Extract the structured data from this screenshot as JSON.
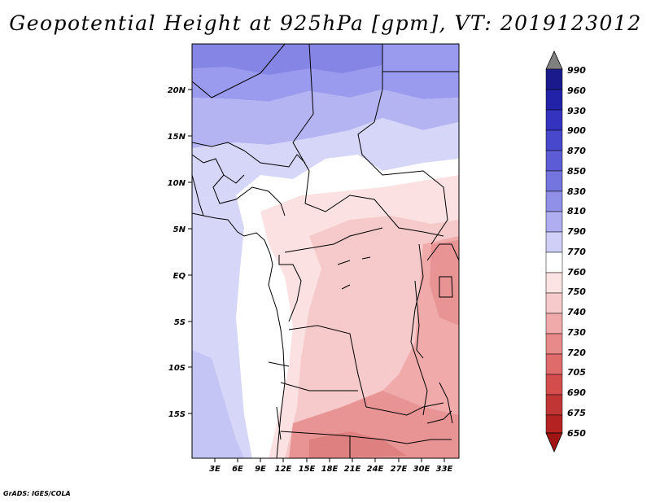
{
  "title": "Geopotential Height at 925hPa [gpm], VT: 2019123012",
  "credit": "GrADS: IGES/COLA",
  "map": {
    "lat_labels": [
      "20N",
      "15N",
      "10N",
      "5N",
      "EQ",
      "5S",
      "10S",
      "15S"
    ],
    "lon_labels": [
      "3E",
      "6E",
      "9E",
      "12E",
      "15E",
      "18E",
      "21E",
      "24E",
      "27E",
      "30E",
      "33E"
    ]
  },
  "colorbar": {
    "levels": [
      "990",
      "960",
      "930",
      "900",
      "870",
      "850",
      "830",
      "810",
      "790",
      "770",
      "760",
      "750",
      "740",
      "730",
      "720",
      "705",
      "690",
      "675",
      "650"
    ],
    "colors": [
      "#808080",
      "#1a1a8c",
      "#2222a8",
      "#3333bf",
      "#4848cc",
      "#5c5cd6",
      "#7575e0",
      "#9090e8",
      "#aeaef0",
      "#cfcff7",
      "#ececfb",
      "#ffffff",
      "#fbe3e3",
      "#f6caca",
      "#f0aaaa",
      "#e88a8a",
      "#df6b6b",
      "#d34d4d",
      "#c23535",
      "#b52222",
      "#a01414"
    ]
  },
  "colors": {
    "land_outline": "#000000",
    "field_low": "#d4a0a0",
    "field_high": "#8080e6"
  }
}
